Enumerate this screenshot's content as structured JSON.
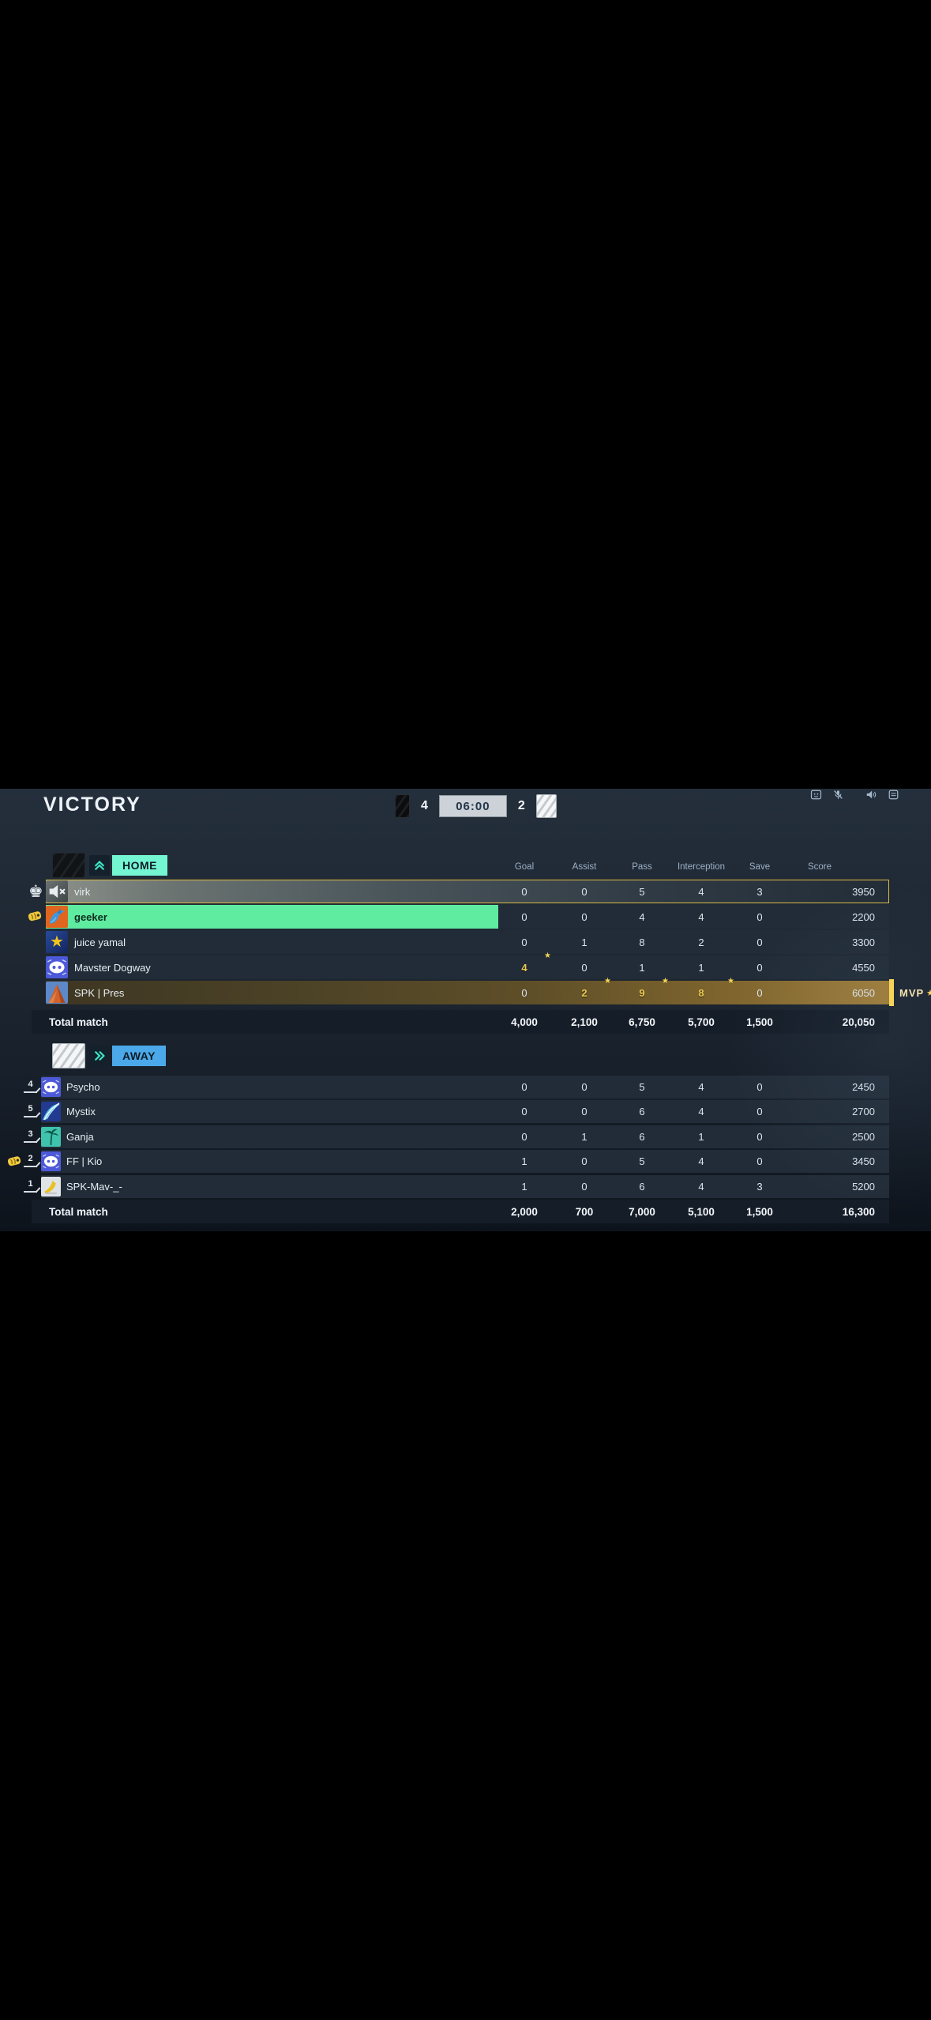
{
  "match": {
    "result_title": "VICTORY",
    "home_score": "4",
    "away_score": "2",
    "timer": "06:00"
  },
  "hud": {
    "icons": [
      "emote-panel-icon",
      "mic-muted-icon",
      "dot-indicator",
      "speaker-icon",
      "recording-panel-icon"
    ]
  },
  "columns": [
    "Goal",
    "Assist",
    "Pass",
    "Interception",
    "Save",
    "Score"
  ],
  "mvp": {
    "label": "MVP"
  },
  "home": {
    "label": "HOME",
    "total_label": "Total match",
    "players": [
      {
        "name": "virk",
        "avatar": "muted-avatar",
        "left_icon": "king-icon",
        "highlight": "self",
        "goal": "0",
        "assist": "0",
        "pass": "5",
        "interception": "4",
        "save": "3",
        "score": "3950",
        "starred": []
      },
      {
        "name": "geeker",
        "avatar": "shark-avatar",
        "left_icon": "glove-icon",
        "highlight": "green",
        "goal": "0",
        "assist": "0",
        "pass": "4",
        "interception": "4",
        "save": "0",
        "score": "2200",
        "starred": []
      },
      {
        "name": "juice yamal",
        "avatar": "star-avatar",
        "left_icon": null,
        "highlight": null,
        "goal": "0",
        "assist": "1",
        "pass": "8",
        "interception": "2",
        "save": "0",
        "score": "3300",
        "starred": []
      },
      {
        "name": "Mavster Dogway",
        "avatar": "discord-avatar",
        "left_icon": null,
        "highlight": null,
        "goal": "4",
        "assist": "0",
        "pass": "1",
        "interception": "1",
        "save": "0",
        "score": "4550",
        "starred": [
          "goal"
        ]
      },
      {
        "name": "SPK | Pres",
        "avatar": "mountain-avatar",
        "left_icon": null,
        "highlight": "gold",
        "goal": "0",
        "assist": "2",
        "pass": "9",
        "interception": "8",
        "save": "0",
        "score": "6050",
        "starred": [
          "assist",
          "pass",
          "interception"
        ]
      }
    ],
    "totals": [
      "4,000",
      "2,100",
      "6,750",
      "5,700",
      "1,500",
      "20,050"
    ]
  },
  "away": {
    "label": "AWAY",
    "total_label": "Total match",
    "players": [
      {
        "rank": "4",
        "name": "Psycho",
        "avatar": "discord-avatar",
        "left_icon": null,
        "highlight": null,
        "goal": "0",
        "assist": "0",
        "pass": "5",
        "interception": "4",
        "save": "0",
        "score": "2450",
        "starred": []
      },
      {
        "rank": "5",
        "name": "Mystix",
        "avatar": "feather-avatar",
        "left_icon": null,
        "highlight": null,
        "goal": "0",
        "assist": "0",
        "pass": "6",
        "interception": "4",
        "save": "0",
        "score": "2700",
        "starred": []
      },
      {
        "rank": "3",
        "name": "Ganja",
        "avatar": "palm-avatar",
        "left_icon": null,
        "highlight": null,
        "goal": "0",
        "assist": "1",
        "pass": "6",
        "interception": "1",
        "save": "0",
        "score": "2500",
        "starred": []
      },
      {
        "rank": "2",
        "name": "FF | Kio",
        "avatar": "discord-avatar",
        "left_icon": "glove-icon",
        "highlight": null,
        "goal": "1",
        "assist": "0",
        "pass": "5",
        "interception": "4",
        "save": "0",
        "score": "3450",
        "starred": []
      },
      {
        "rank": "1",
        "name": "SPK-Mav-_-",
        "avatar": "boot-avatar",
        "left_icon": null,
        "highlight": null,
        "goal": "1",
        "assist": "0",
        "pass": "6",
        "interception": "4",
        "save": "3",
        "score": "5200",
        "starred": []
      }
    ],
    "totals": [
      "2,000",
      "700",
      "7,000",
      "5,100",
      "1,500",
      "16,300"
    ]
  },
  "colors": {
    "home_accent": "#74f6d3",
    "away_accent": "#4ba9e9",
    "self_row_border": "#d9ba45",
    "highlight_green": "#5feba0",
    "gold_stat": "#e9c94f",
    "mvp_gold": "#ffd952",
    "timer_bg": "#ccd2d7",
    "panel_bg": "#1e2732"
  }
}
